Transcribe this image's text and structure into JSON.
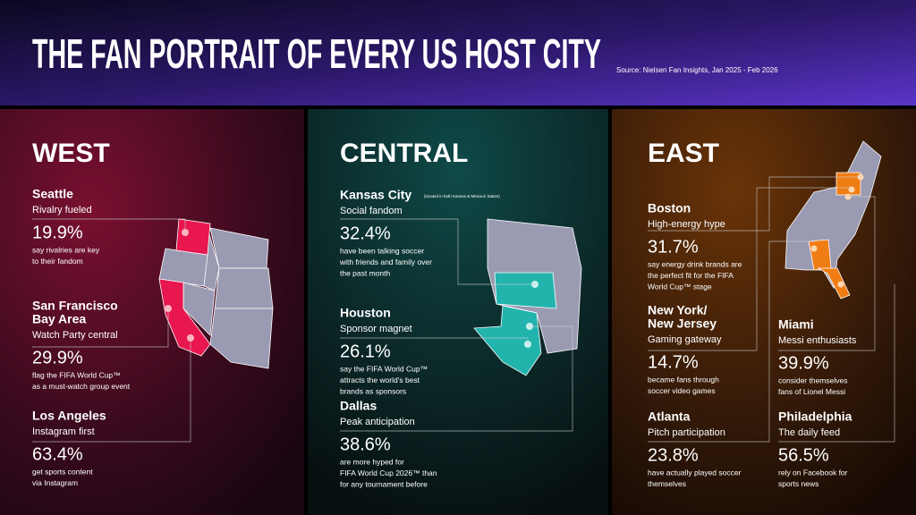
{
  "header": {
    "title": "THE FAN PORTRAIT OF EVERY US HOST CITY",
    "source": "Source: Nielsen Fan Insights, Jan 2025 - Feb 2026"
  },
  "regions": [
    {
      "name": "WEST",
      "cities": [
        {
          "name": [
            "Seattle"
          ],
          "tagline": "Rivalry fueled",
          "stat": "19.9%",
          "description": [
            "say rivalries are key",
            "to their fandom"
          ]
        },
        {
          "name": [
            "San Francisco",
            "Bay Area"
          ],
          "tagline": "Watch Party central",
          "stat": "29.9%",
          "description": [
            "flag the FIFA World Cup™",
            "as a must-watch group event"
          ]
        },
        {
          "name": [
            "Los Angeles"
          ],
          "tagline": "Instagram first",
          "stat": "63.4%",
          "description": [
            "get sports content",
            "via Instagram"
          ]
        }
      ]
    },
    {
      "name": "CENTRAL",
      "cities": [
        {
          "name": [
            "Kansas City"
          ],
          "note": "(located in both Kansas & Missouri States)",
          "tagline": "Social fandom",
          "stat": "32.4%",
          "description": [
            "have been talking soccer",
            "with friends and family over",
            "the past month"
          ]
        },
        {
          "name": [
            "Houston"
          ],
          "tagline": "Sponsor magnet",
          "stat": "26.1%",
          "description": [
            "say the FIFA World Cup™",
            "attracts the world's best",
            "brands as sponsors"
          ]
        },
        {
          "name": [
            "Dallas"
          ],
          "tagline": "Peak anticipation",
          "stat": "38.6%",
          "description": [
            "are more hyped for",
            "FIFA World Cup 2026™ than",
            "for any tournament before"
          ]
        }
      ]
    },
    {
      "name": "EAST",
      "cities": [
        {
          "name": [
            "Boston"
          ],
          "tagline": "High-energy hype",
          "stat": "31.7%",
          "description": [
            "say energy drink brands are",
            "the perfect fit for the FIFA",
            "World Cup™ stage"
          ]
        },
        {
          "name": [
            "New York/",
            "New Jersey"
          ],
          "tagline": "Gaming gateway",
          "stat": "14.7%",
          "description": [
            "became fans through",
            "soccer video games"
          ]
        },
        {
          "name": [
            "Atlanta"
          ],
          "tagline": "Pitch participation",
          "stat": "23.8%",
          "description": [
            "have actually played soccer",
            "themselves"
          ]
        },
        {
          "name": [
            "Miami"
          ],
          "tagline": "Messi enthusiasts",
          "stat": "39.9%",
          "description": [
            "consider themselves",
            "fans of Lionel Messi"
          ]
        },
        {
          "name": [
            "Philadelphia"
          ],
          "tagline": "The daily feed",
          "stat": "56.5%",
          "description": [
            "rely on Facebook for",
            "sports news"
          ]
        }
      ]
    }
  ]
}
